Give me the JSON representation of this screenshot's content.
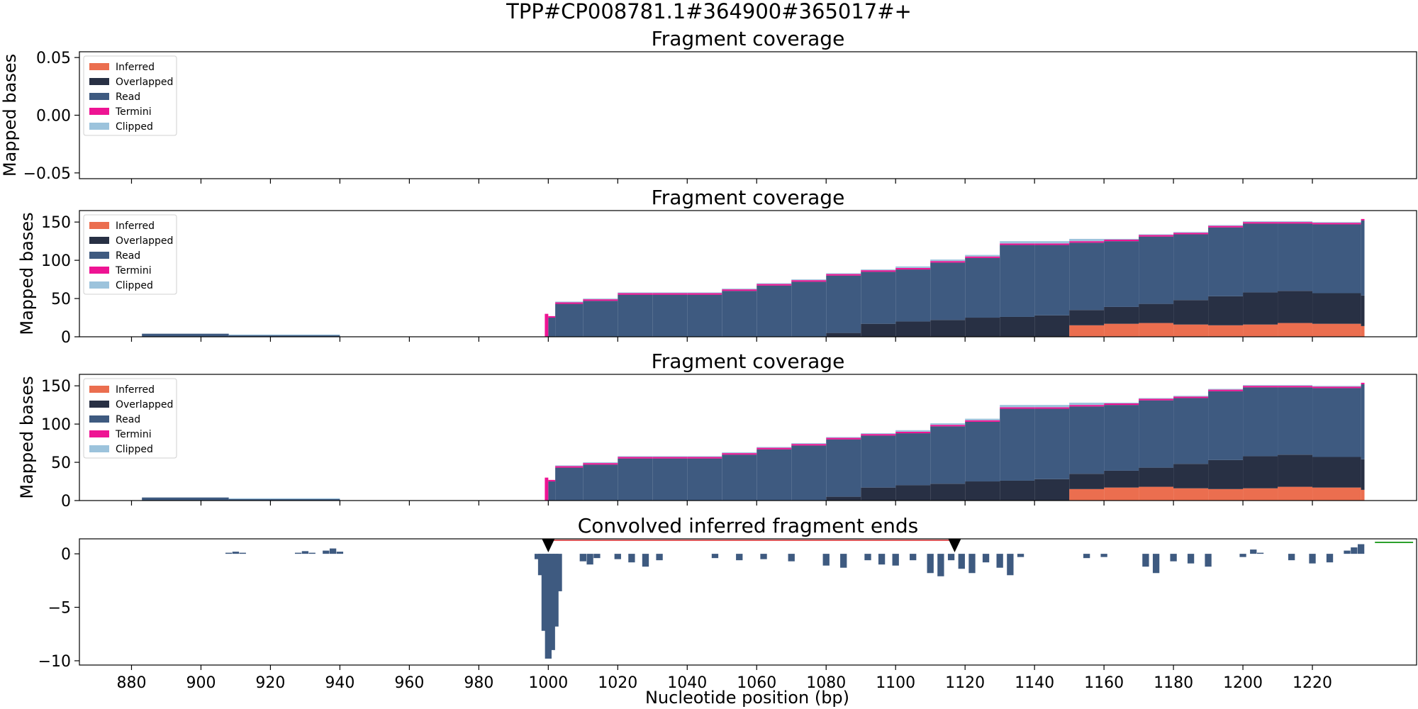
{
  "figure": {
    "suptitle": "TPP#CP008781.1#364900#365017#+",
    "xlabel": "Nucleotide position (bp)",
    "xlim": [
      865,
      1250
    ],
    "xticks": [
      880,
      900,
      920,
      940,
      960,
      980,
      1000,
      1020,
      1040,
      1060,
      1080,
      1100,
      1120,
      1140,
      1160,
      1180,
      1200,
      1220
    ],
    "colors": {
      "inferred": "#EB6E4F",
      "overlapped": "#283044",
      "read": "#3E5A80",
      "termini": "#EE1493",
      "clipped": "#9CC3DC",
      "marker": "#000000",
      "span_line": "#D62728",
      "green_line": "#2CA02C"
    }
  },
  "panels": [
    {
      "title": "Fragment coverage",
      "ylabel": "Mapped bases",
      "ylim": [
        -0.055,
        0.055
      ],
      "yticks": [
        0.05,
        0.0,
        -0.05
      ],
      "ytick_labels": [
        "0.05",
        "0.00",
        "−0.05"
      ],
      "legend": [
        "Inferred",
        "Overlapped",
        "Read",
        "Termini",
        "Clipped"
      ]
    },
    {
      "title": "Fragment coverage",
      "ylabel": "Mapped bases",
      "ylim": [
        0,
        165
      ],
      "yticks": [
        0,
        50,
        100,
        150
      ],
      "ytick_labels": [
        "0",
        "50",
        "100",
        "150"
      ],
      "legend": [
        "Inferred",
        "Overlapped",
        "Read",
        "Termini",
        "Clipped"
      ]
    },
    {
      "title": "Fragment coverage",
      "ylabel": "Mapped bases",
      "ylim": [
        0,
        165
      ],
      "yticks": [
        0,
        50,
        100,
        150
      ],
      "ytick_labels": [
        "0",
        "50",
        "100",
        "150"
      ],
      "legend": [
        "Inferred",
        "Overlapped",
        "Read",
        "Termini",
        "Clipped"
      ]
    },
    {
      "title": "Convolved inferred fragment ends",
      "ylabel": "",
      "ylim": [
        -10.4,
        1.4
      ],
      "yticks": [
        0,
        -5,
        -10
      ],
      "ytick_labels": [
        "0",
        "−5",
        "−10"
      ]
    }
  ],
  "chart_data": [
    {
      "type": "area",
      "title": "Fragment coverage",
      "series": [
        {
          "name": "Inferred",
          "x": [],
          "values": []
        },
        {
          "name": "Overlapped",
          "x": [],
          "values": []
        },
        {
          "name": "Read",
          "x": [],
          "values": []
        },
        {
          "name": "Termini",
          "x": [],
          "values": []
        },
        {
          "name": "Clipped",
          "x": [],
          "values": []
        }
      ]
    },
    {
      "type": "area",
      "title": "Fragment coverage",
      "stacked": true,
      "x": [
        883,
        908,
        940,
        999,
        1000,
        1002,
        1010,
        1020,
        1030,
        1040,
        1050,
        1060,
        1070,
        1080,
        1090,
        1100,
        1110,
        1120,
        1130,
        1140,
        1150,
        1160,
        1170,
        1180,
        1190,
        1200,
        1210,
        1220,
        1234
      ],
      "series": [
        {
          "name": "Inferred",
          "values": [
            0,
            0,
            0,
            0,
            0,
            0,
            0,
            0,
            0,
            0,
            0,
            0,
            0,
            0,
            0,
            0,
            0,
            0,
            0,
            0,
            15,
            17,
            18,
            16,
            15,
            16,
            18,
            17,
            14
          ]
        },
        {
          "name": "Overlapped",
          "values": [
            0,
            0,
            0,
            0,
            0,
            0,
            0,
            0,
            0,
            0,
            0,
            0,
            0,
            5,
            17,
            20,
            22,
            25,
            26,
            28,
            20,
            22,
            25,
            32,
            38,
            42,
            42,
            40,
            40
          ]
        },
        {
          "name": "Read",
          "values": [
            4,
            2,
            0,
            0,
            25,
            43,
            47,
            55,
            55,
            55,
            60,
            67,
            72,
            75,
            68,
            68,
            75,
            78,
            94,
            92,
            88,
            86,
            88,
            86,
            90,
            90,
            88,
            90,
            98
          ]
        },
        {
          "name": "Termini",
          "values": [
            0,
            0,
            0,
            30,
            2,
            2,
            2,
            2,
            2,
            2,
            2,
            2,
            2,
            2,
            2,
            2,
            2,
            2,
            2,
            2,
            2,
            2,
            2,
            2,
            2,
            2,
            2,
            2,
            2
          ]
        },
        {
          "name": "Clipped",
          "values": [
            0,
            1,
            0,
            0,
            0,
            1,
            1,
            1,
            1,
            1,
            1,
            1,
            1,
            1,
            1,
            2,
            2,
            2,
            3,
            3,
            3,
            1,
            1,
            1,
            1,
            1,
            1,
            1,
            0
          ]
        }
      ],
      "ylim": [
        0,
        165
      ]
    },
    {
      "type": "area",
      "title": "Fragment coverage",
      "stacked": true,
      "x": [
        883,
        908,
        940,
        999,
        1000,
        1002,
        1010,
        1020,
        1030,
        1040,
        1050,
        1060,
        1070,
        1080,
        1090,
        1100,
        1110,
        1120,
        1130,
        1140,
        1150,
        1160,
        1170,
        1180,
        1190,
        1200,
        1210,
        1220,
        1234
      ],
      "series": [
        {
          "name": "Inferred",
          "values": [
            0,
            0,
            0,
            0,
            0,
            0,
            0,
            0,
            0,
            0,
            0,
            0,
            0,
            0,
            0,
            0,
            0,
            0,
            0,
            0,
            15,
            17,
            18,
            16,
            15,
            16,
            18,
            17,
            14
          ]
        },
        {
          "name": "Overlapped",
          "values": [
            0,
            0,
            0,
            0,
            0,
            0,
            0,
            0,
            0,
            0,
            0,
            0,
            0,
            5,
            17,
            20,
            22,
            25,
            26,
            28,
            20,
            22,
            25,
            32,
            38,
            42,
            42,
            40,
            40
          ]
        },
        {
          "name": "Read",
          "values": [
            4,
            2,
            0,
            0,
            25,
            43,
            47,
            55,
            55,
            55,
            60,
            67,
            72,
            75,
            68,
            68,
            75,
            78,
            94,
            92,
            88,
            86,
            88,
            86,
            90,
            90,
            88,
            90,
            98
          ]
        },
        {
          "name": "Termini",
          "values": [
            0,
            0,
            0,
            30,
            2,
            2,
            2,
            2,
            2,
            2,
            2,
            2,
            2,
            2,
            2,
            2,
            2,
            2,
            2,
            2,
            2,
            2,
            2,
            2,
            2,
            2,
            2,
            2,
            2
          ]
        },
        {
          "name": "Clipped",
          "values": [
            0,
            1,
            0,
            0,
            0,
            1,
            1,
            1,
            1,
            1,
            1,
            1,
            1,
            1,
            1,
            2,
            2,
            2,
            3,
            3,
            3,
            1,
            1,
            1,
            1,
            1,
            1,
            1,
            0
          ]
        }
      ],
      "ylim": [
        0,
        165
      ]
    },
    {
      "type": "bar",
      "title": "Convolved inferred fragment ends",
      "x": [
        908,
        910,
        912,
        928,
        930,
        932,
        936,
        938,
        940,
        997,
        998,
        999,
        1000,
        1001,
        1002,
        1003,
        1010,
        1012,
        1014,
        1020,
        1024,
        1028,
        1032,
        1048,
        1055,
        1062,
        1070,
        1080,
        1085,
        1092,
        1096,
        1100,
        1105,
        1110,
        1113,
        1116,
        1119,
        1122,
        1126,
        1130,
        1133,
        1136,
        1155,
        1160,
        1172,
        1175,
        1180,
        1185,
        1190,
        1200,
        1203,
        1205,
        1214,
        1220,
        1225,
        1230,
        1232,
        1234
      ],
      "values": [
        0.1,
        0.2,
        0.1,
        0.1,
        0.25,
        0.1,
        0.3,
        0.5,
        0.2,
        -0.5,
        -2.0,
        -7.2,
        -9.8,
        -9.0,
        -6.8,
        -3.5,
        -0.7,
        -1.0,
        -0.4,
        -0.5,
        -0.8,
        -1.2,
        -0.6,
        -0.4,
        -0.6,
        -0.5,
        -0.7,
        -1.1,
        -1.3,
        -0.6,
        -1.0,
        -1.1,
        -0.6,
        -1.8,
        -2.1,
        -0.6,
        -1.4,
        -1.8,
        -0.8,
        -1.3,
        -2.0,
        -0.3,
        -0.4,
        -0.3,
        -1.2,
        -1.8,
        -0.7,
        -0.9,
        -1.2,
        -0.3,
        0.4,
        0.1,
        -0.6,
        -0.9,
        -0.8,
        0.3,
        0.6,
        0.9
      ],
      "markers": [
        1000,
        1117
      ],
      "span": [
        1000,
        1117
      ],
      "green_segment": [
        1238,
        1249
      ],
      "ylim": [
        -10.4,
        1.4
      ]
    }
  ]
}
